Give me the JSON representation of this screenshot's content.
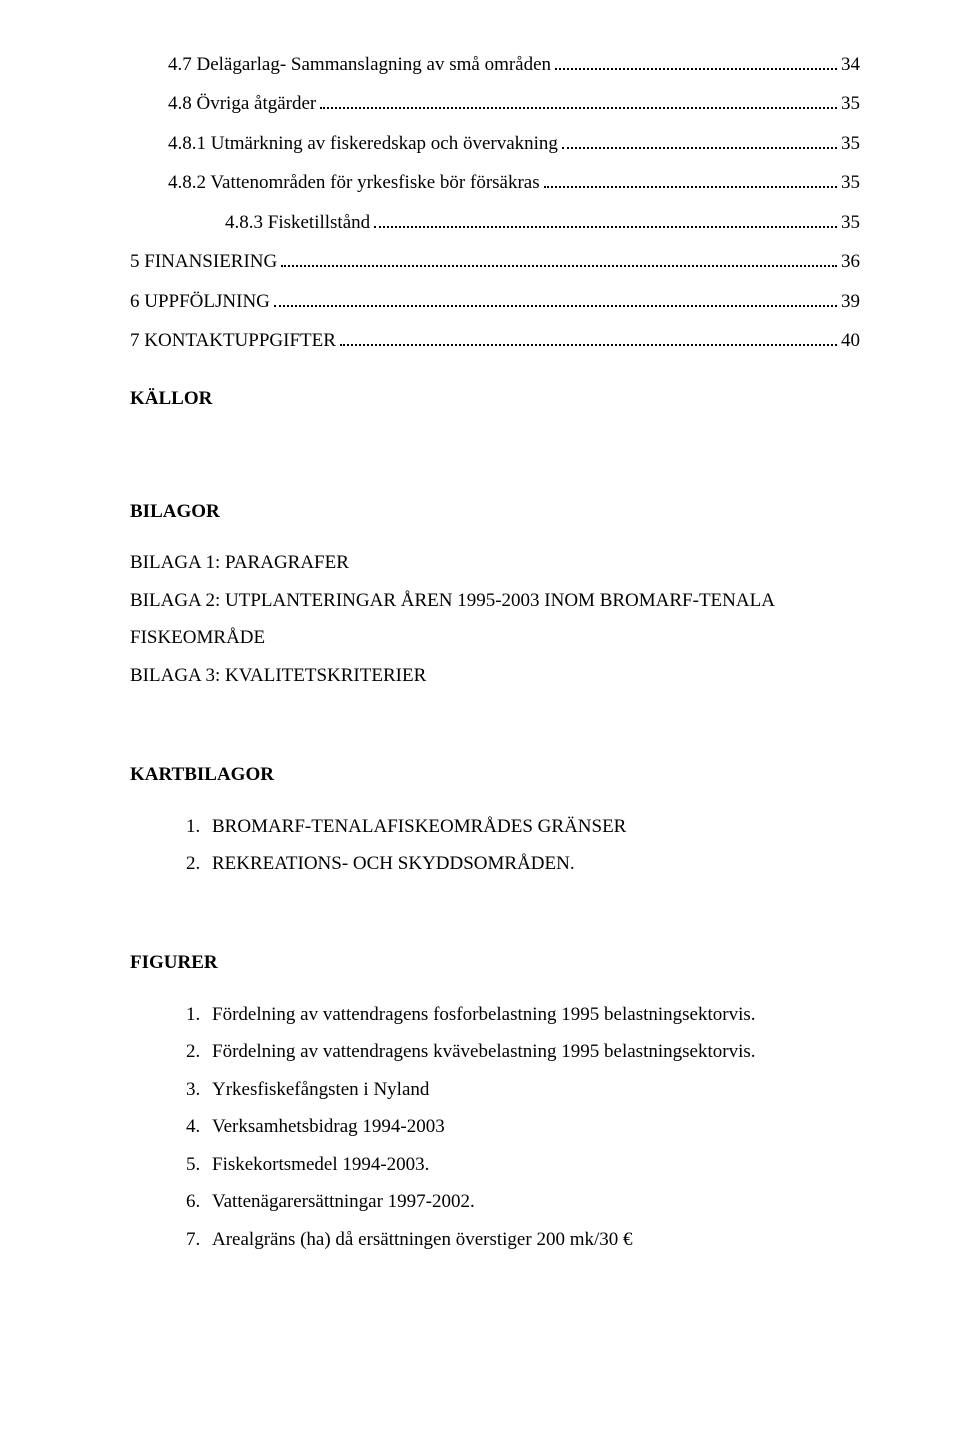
{
  "toc": [
    {
      "label": "4.7 Delägarlag- Sammanslagning av små områden",
      "page": "34",
      "indent": 1
    },
    {
      "label": "4.8 Övriga åtgärder",
      "page": "35",
      "indent": 1
    },
    {
      "label": "4.8.1 Utmärkning av fiskeredskap och övervakning",
      "page": "35",
      "indent": 1
    },
    {
      "label": "4.8.2 Vattenområden för yrkesfiske bör försäkras",
      "page": "35",
      "indent": 1
    },
    {
      "label": "4.8.3    Fisketillstånd",
      "page": "35",
      "indent": 2
    },
    {
      "label": "5 FINANSIERING",
      "page": "36",
      "indent": 0
    },
    {
      "label": "6 UPPFÖLJNING",
      "page": "39",
      "indent": 0
    },
    {
      "label": "7 KONTAKTUPPGIFTER",
      "page": "40",
      "indent": 0
    }
  ],
  "kallor": "KÄLLOR",
  "bilagor_heading": "BILAGOR",
  "bilagor_items": [
    "BILAGA 1: PARAGRAFER",
    "BILAGA 2: UTPLANTERINGAR ÅREN 1995-2003 INOM BROMARF-TENALA",
    "FISKEOMRÅDE",
    "BILAGA 3: KVALITETSKRITERIER"
  ],
  "kartbilagor_heading": "KARTBILAGOR",
  "kartbilagor_items": [
    {
      "num": "1.",
      "text": "BROMARF-TENALAFISKEOMRÅDES GRÄNSER"
    },
    {
      "num": "2.",
      "text": "REKREATIONS- OCH SKYDDSOMRÅDEN."
    }
  ],
  "figurer_heading": "FIGURER",
  "figurer_items": [
    {
      "num": "1.",
      "text": "Fördelning av vattendragens fosforbelastning 1995 belastningsektorvis."
    },
    {
      "num": "2.",
      "text": "Fördelning av vattendragens kvävebelastning 1995 belastningsektorvis."
    },
    {
      "num": "3.",
      "text": "Yrkesfiskefångsten i Nyland"
    },
    {
      "num": "4.",
      "text": "Verksamhetsbidrag 1994-2003"
    },
    {
      "num": "5.",
      "text": "Fiskekortsmedel 1994-2003."
    },
    {
      "num": "6.",
      "text": "Vattenägarersättningar 1997-2002."
    },
    {
      "num": "7.",
      "text": "Arealgräns (ha) då ersättningen överstiger 200 mk/30 €"
    }
  ]
}
